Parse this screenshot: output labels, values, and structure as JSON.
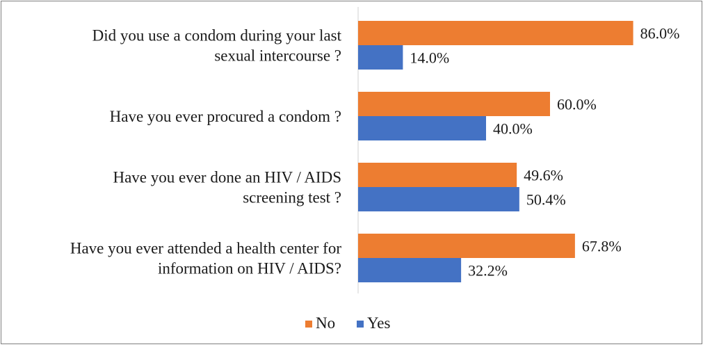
{
  "chart_data": {
    "type": "bar",
    "orientation": "horizontal",
    "categories": [
      [
        "Did you use a condom during your last",
        "sexual intercourse ?"
      ],
      [
        "Have you ever procured a condom ?"
      ],
      [
        "Have you ever done an HIV / AIDS",
        "screening test ?"
      ],
      [
        "Have you ever attended a health center for",
        "information on HIV / AIDS?"
      ]
    ],
    "series": [
      {
        "name": "No",
        "color": "#ed7d31",
        "values": [
          86.0,
          60.0,
          49.6,
          67.8
        ],
        "labels": [
          "86.0%",
          "60.0%",
          "49.6%",
          "67.8%"
        ]
      },
      {
        "name": "Yes",
        "color": "#4472c4",
        "values": [
          14.0,
          40.0,
          50.4,
          32.2
        ],
        "labels": [
          "14.0%",
          "40.0%",
          "50.4%",
          "32.2%"
        ]
      }
    ],
    "xlim": [
      0,
      100
    ],
    "grid": false,
    "legend": "bottom"
  }
}
